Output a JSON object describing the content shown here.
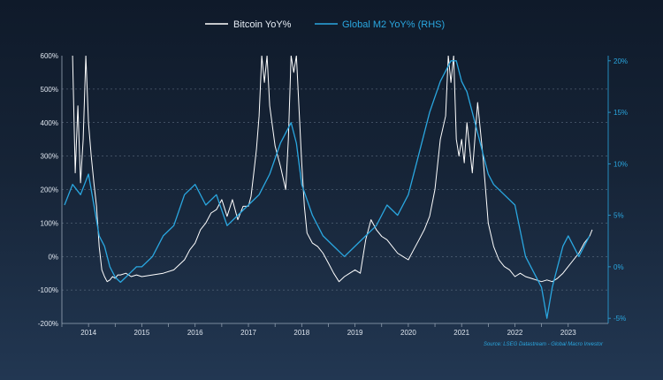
{
  "chart_data": {
    "type": "line",
    "title": "",
    "legend": {
      "placement": "top-center"
    },
    "y_left": {
      "range": [
        -200,
        600
      ],
      "ticks": [
        -200,
        -100,
        0,
        100,
        200,
        300,
        400,
        500,
        600
      ],
      "tick_labels": [
        "-200%",
        "-100%",
        "0%",
        "100%",
        "200%",
        "300%",
        "400%",
        "500%",
        "600%"
      ]
    },
    "y_right": {
      "range": [
        -5.5,
        20.5
      ],
      "ticks": [
        -5,
        0,
        5,
        10,
        15,
        20
      ],
      "tick_labels": [
        "-5%",
        "0%",
        "5%",
        "10%",
        "15%",
        "20%"
      ]
    },
    "x_axis": {
      "range": [
        2013.5,
        2023.75
      ],
      "ticks": [
        2014,
        2015,
        2016,
        2017,
        2018,
        2019,
        2020,
        2021,
        2022,
        2023
      ],
      "tick_labels": [
        "2014",
        "2015",
        "2016",
        "2017",
        "2018",
        "2019",
        "2020",
        "2021",
        "2022",
        "2023"
      ]
    },
    "grid": true,
    "source": "Source: LSEG Datastream - Global Macro Investor",
    "colors": {
      "btc": "#ffffff",
      "m2": "#2aa7e0",
      "axis": "#9aa8b8",
      "grid": "#6b7c90"
    },
    "series": [
      {
        "name": "Bitcoin YoY%",
        "axis": "left",
        "x": [
          2013.7,
          2013.75,
          2013.8,
          2013.85,
          2013.9,
          2013.95,
          2014.0,
          2014.05,
          2014.1,
          2014.15,
          2014.2,
          2014.25,
          2014.3,
          2014.35,
          2014.4,
          2014.45,
          2014.5,
          2014.55,
          2014.6,
          2014.7,
          2014.8,
          2014.9,
          2015.0,
          2015.2,
          2015.4,
          2015.6,
          2015.8,
          2015.9,
          2016.0,
          2016.1,
          2016.2,
          2016.3,
          2016.4,
          2016.5,
          2016.6,
          2016.7,
          2016.8,
          2016.9,
          2017.0,
          2017.05,
          2017.1,
          2017.15,
          2017.2,
          2017.25,
          2017.3,
          2017.35,
          2017.4,
          2017.5,
          2017.6,
          2017.7,
          2017.75,
          2017.8,
          2017.85,
          2017.9,
          2018.0,
          2018.05,
          2018.1,
          2018.2,
          2018.3,
          2018.4,
          2018.5,
          2018.6,
          2018.7,
          2018.8,
          2018.9,
          2019.0,
          2019.1,
          2019.2,
          2019.3,
          2019.4,
          2019.5,
          2019.6,
          2019.7,
          2019.8,
          2019.9,
          2020.0,
          2020.1,
          2020.2,
          2020.3,
          2020.4,
          2020.5,
          2020.6,
          2020.7,
          2020.75,
          2020.8,
          2020.85,
          2020.9,
          2020.95,
          2021.0,
          2021.05,
          2021.1,
          2021.2,
          2021.3,
          2021.4,
          2021.5,
          2021.6,
          2021.7,
          2021.8,
          2021.9,
          2022.0,
          2022.1,
          2022.2,
          2022.3,
          2022.4,
          2022.5,
          2022.6,
          2022.7,
          2022.8,
          2022.9,
          2023.0,
          2023.1,
          2023.2,
          2023.3,
          2023.4,
          2023.45
        ],
        "values": [
          600,
          250,
          450,
          220,
          350,
          600,
          400,
          300,
          220,
          150,
          30,
          -40,
          -60,
          -75,
          -70,
          -60,
          -65,
          -55,
          -55,
          -50,
          -60,
          -55,
          -60,
          -55,
          -50,
          -40,
          -10,
          20,
          40,
          80,
          100,
          130,
          140,
          170,
          120,
          170,
          110,
          150,
          150,
          180,
          250,
          320,
          420,
          600,
          520,
          600,
          450,
          330,
          270,
          200,
          350,
          600,
          550,
          600,
          280,
          150,
          70,
          40,
          30,
          10,
          -20,
          -50,
          -75,
          -60,
          -50,
          -40,
          -50,
          50,
          110,
          80,
          60,
          50,
          30,
          10,
          0,
          -10,
          20,
          50,
          80,
          120,
          200,
          350,
          420,
          600,
          520,
          600,
          350,
          300,
          350,
          280,
          400,
          250,
          460,
          300,
          100,
          30,
          -10,
          -30,
          -40,
          -60,
          -50,
          -60,
          -65,
          -70,
          -75,
          -70,
          -75,
          -65,
          -50,
          -30,
          -10,
          10,
          40,
          60,
          80
        ]
      },
      {
        "name": "Global M2 YoY% (RHS)",
        "axis": "right",
        "x": [
          2013.55,
          2013.7,
          2013.85,
          2014.0,
          2014.1,
          2014.2,
          2014.3,
          2014.4,
          2014.5,
          2014.6,
          2014.7,
          2014.8,
          2014.9,
          2015.0,
          2015.2,
          2015.4,
          2015.6,
          2015.8,
          2016.0,
          2016.2,
          2016.4,
          2016.6,
          2016.8,
          2017.0,
          2017.2,
          2017.4,
          2017.6,
          2017.8,
          2017.9,
          2018.0,
          2018.2,
          2018.4,
          2018.6,
          2018.8,
          2019.0,
          2019.2,
          2019.4,
          2019.6,
          2019.8,
          2020.0,
          2020.2,
          2020.4,
          2020.6,
          2020.8,
          2020.9,
          2021.0,
          2021.1,
          2021.2,
          2021.3,
          2021.4,
          2021.5,
          2021.6,
          2021.8,
          2022.0,
          2022.2,
          2022.4,
          2022.5,
          2022.6,
          2022.7,
          2022.8,
          2022.9,
          2023.0,
          2023.2,
          2023.4
        ],
        "values": [
          6,
          8,
          7,
          9,
          6,
          3,
          2,
          0,
          -1,
          -1.5,
          -1,
          -0.5,
          0,
          0,
          1,
          3,
          4,
          7,
          8,
          6,
          7,
          4,
          5,
          6,
          7,
          9,
          12,
          14,
          12,
          8,
          5,
          3,
          2,
          1,
          2,
          3,
          4,
          6,
          5,
          7,
          11,
          15,
          18,
          20,
          20,
          18,
          17,
          15,
          13,
          11,
          9,
          8,
          7,
          6,
          1,
          -1,
          -2,
          -5,
          -2,
          0,
          2,
          3,
          1,
          3
        ]
      }
    ]
  }
}
